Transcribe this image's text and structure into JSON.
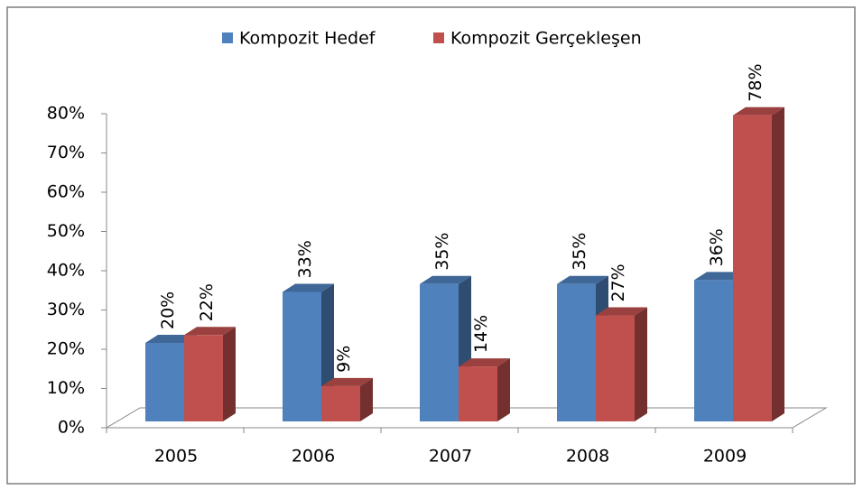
{
  "chart_data": {
    "type": "bar3d",
    "categories": [
      "2005",
      "2006",
      "2007",
      "2008",
      "2009"
    ],
    "series": [
      {
        "name": "Kompozit Hedef",
        "color": "#4f81bd",
        "values": [
          20,
          33,
          35,
          35,
          36
        ],
        "value_labels": [
          "20%",
          "33%",
          "35%",
          "35%",
          "36%"
        ]
      },
      {
        "name": "Kompozit Gerçekleşen",
        "color": "#c0504d",
        "values": [
          22,
          9,
          14,
          27,
          78
        ],
        "value_labels": [
          "22%",
          "9%",
          "14%",
          "27%",
          "78%"
        ]
      }
    ],
    "ylim": [
      0,
      80
    ],
    "yticks": [
      {
        "value": 0,
        "label": "0%"
      },
      {
        "value": 10,
        "label": "10%"
      },
      {
        "value": 20,
        "label": "20%"
      },
      {
        "value": 30,
        "label": "30%"
      },
      {
        "value": 40,
        "label": "40%"
      },
      {
        "value": 50,
        "label": "50%"
      },
      {
        "value": 60,
        "label": "60%"
      },
      {
        "value": 70,
        "label": "70%"
      },
      {
        "value": 80,
        "label": "80%"
      }
    ],
    "legend": "top"
  }
}
